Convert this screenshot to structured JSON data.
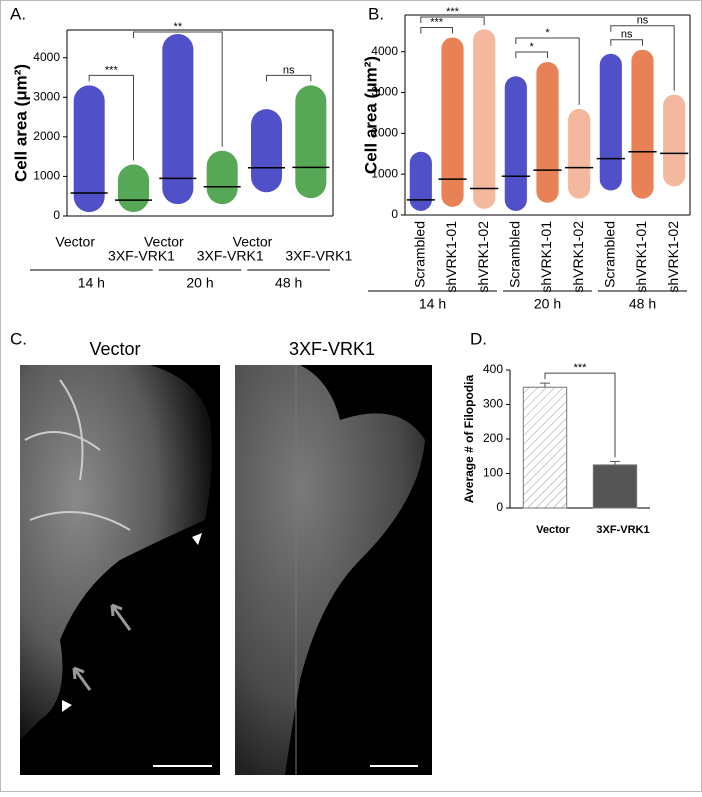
{
  "chart_data": [
    {
      "type": "strip",
      "label": "A.",
      "y_label": "Cell area (μm²)",
      "categories": [
        "Vector",
        "3XF-VRK1",
        "Vector",
        "3XF-VRK1",
        "Vector",
        "3XF-VRK1"
      ],
      "groups": [
        "14 h",
        "20 h",
        "48 h"
      ],
      "colors": [
        "#1515b5",
        "#1d8a1d",
        "#1515b5",
        "#1d8a1d",
        "#1515b5",
        "#1d8a1d"
      ],
      "values": [
        580,
        400,
        950,
        740,
        1220,
        1230
      ],
      "ranges": [
        [
          100,
          3300
        ],
        [
          100,
          1300
        ],
        [
          300,
          4600
        ],
        [
          300,
          1650
        ],
        [
          600,
          2700
        ],
        [
          450,
          3300
        ]
      ],
      "ylim": [
        0,
        4700
      ],
      "yticks": [
        0,
        1000,
        2000,
        3000,
        4000
      ],
      "significance": [
        {
          "from": 0,
          "to": 1,
          "label": "***"
        },
        {
          "from": 1,
          "to": 3,
          "label": "**"
        },
        {
          "from": 4,
          "to": 5,
          "label": "ns"
        }
      ]
    },
    {
      "type": "strip",
      "label": "B.",
      "y_label": "Cell area (μm²)",
      "categories": [
        "Scrambled",
        "shVRK1-01",
        "shVRK1-02",
        "Scrambled",
        "shVRK1-01",
        "shVRK1-02",
        "Scrambled",
        "shVRK1-01",
        "shVRK1-02"
      ],
      "groups": [
        "14 h",
        "20 h",
        "48 h"
      ],
      "colors": [
        "#1515b5",
        "#e0571c",
        "#f0a07e",
        "#1515b5",
        "#e0571c",
        "#f0a07e",
        "#1515b5",
        "#e0571c",
        "#f0a07e"
      ],
      "values": [
        370,
        880,
        650,
        950,
        1100,
        1160,
        1380,
        1550,
        1510
      ],
      "ranges": [
        [
          100,
          1550
        ],
        [
          200,
          4350
        ],
        [
          150,
          4550
        ],
        [
          100,
          3400
        ],
        [
          300,
          3750
        ],
        [
          400,
          2600
        ],
        [
          600,
          3950
        ],
        [
          400,
          4050
        ],
        [
          700,
          2950
        ]
      ],
      "ylim": [
        0,
        4900
      ],
      "yticks": [
        0,
        1000,
        2000,
        3000,
        4000
      ],
      "significance": [
        {
          "from": 0,
          "to": 1,
          "label": "***"
        },
        {
          "from": 0,
          "to": 2,
          "label": "***"
        },
        {
          "from": 3,
          "to": 4,
          "label": "*"
        },
        {
          "from": 3,
          "to": 5,
          "label": "*"
        },
        {
          "from": 6,
          "to": 7,
          "label": "ns"
        },
        {
          "from": 6,
          "to": 8,
          "label": "ns"
        }
      ]
    },
    {
      "type": "bar",
      "label": "D.",
      "y_label": "Average # of Filopodia",
      "categories": [
        "Vector",
        "3XF-VRK1"
      ],
      "colors": [
        "#ffffff",
        "#555555"
      ],
      "values": [
        350,
        125
      ],
      "errors": [
        12,
        10
      ],
      "ylim": [
        0,
        400
      ],
      "yticks": [
        0,
        100,
        200,
        300,
        400
      ],
      "significance": [
        {
          "from": 0,
          "to": 1,
          "label": "***"
        }
      ]
    }
  ],
  "figure_c": {
    "label": "C.",
    "titles": [
      "Vector",
      "3XF-VRK1"
    ]
  }
}
